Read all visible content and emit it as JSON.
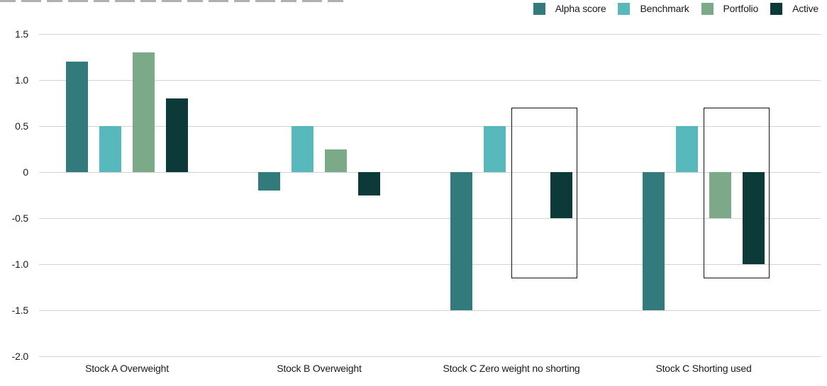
{
  "chart_data": {
    "type": "bar",
    "title": "",
    "categories": [
      "Stock A Overweight",
      "Stock B Overweight",
      "Stock C Zero weight no shorting",
      "Stock C Shorting used"
    ],
    "series": [
      {
        "name": "Alpha score",
        "color": "#337a7d",
        "values": [
          1.2,
          -0.2,
          -1.5,
          -1.5
        ]
      },
      {
        "name": "Benchmark",
        "color": "#57b9bb",
        "values": [
          0.5,
          0.5,
          0.5,
          0.5
        ]
      },
      {
        "name": "Portfolio",
        "color": "#7caa88",
        "values": [
          1.3,
          0.25,
          0,
          -0.5
        ]
      },
      {
        "name": "Active",
        "color": "#0b3a38",
        "values": [
          0.8,
          -0.25,
          -0.5,
          -1.0
        ]
      }
    ],
    "xlabel": "",
    "ylabel": "",
    "ylim": [
      -2.0,
      1.5
    ],
    "yticks": [
      1.5,
      1.0,
      0.5,
      0,
      -0.5,
      -1.0,
      -1.5,
      -2.0
    ],
    "ytick_labels": [
      "1.5",
      "1.0",
      "0.5",
      "0",
      "-0.5",
      "-1.0",
      "-1.5",
      "-2.0"
    ],
    "grid": "horizontal",
    "gridline_color": "#d2d2d2",
    "legend_position": "top-right",
    "annotations": {
      "highlight_boxes": [
        {
          "category": "Stock C Zero weight no shorting",
          "covers_series": [
            "Portfolio",
            "Active"
          ],
          "value_top": 0.7,
          "value_bottom": -1.15,
          "border_color": "#111111"
        },
        {
          "category": "Stock C Shorting used",
          "covers_series": [
            "Portfolio",
            "Active"
          ],
          "value_top": 0.7,
          "value_bottom": -1.15,
          "border_color": "#111111"
        }
      ]
    },
    "text_color": "#1a1a1a",
    "background_color": "#ffffff"
  }
}
